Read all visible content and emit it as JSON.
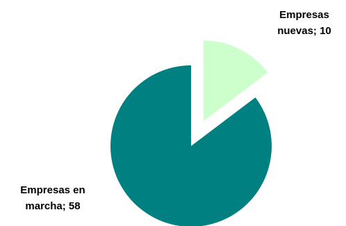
{
  "chart_data": {
    "type": "pie",
    "title": "",
    "slices": [
      {
        "name": "Empresas en marcha",
        "value": 58,
        "color": "#008080",
        "label_lines": [
          "Empresas en",
          "marcha; 58"
        ],
        "exploded": false
      },
      {
        "name": "Empresas nuevas",
        "value": 10,
        "color": "#CCFFCC",
        "label_lines": [
          "Empresas",
          "nuevas; 10"
        ],
        "exploded": true
      }
    ],
    "legend": "none"
  }
}
